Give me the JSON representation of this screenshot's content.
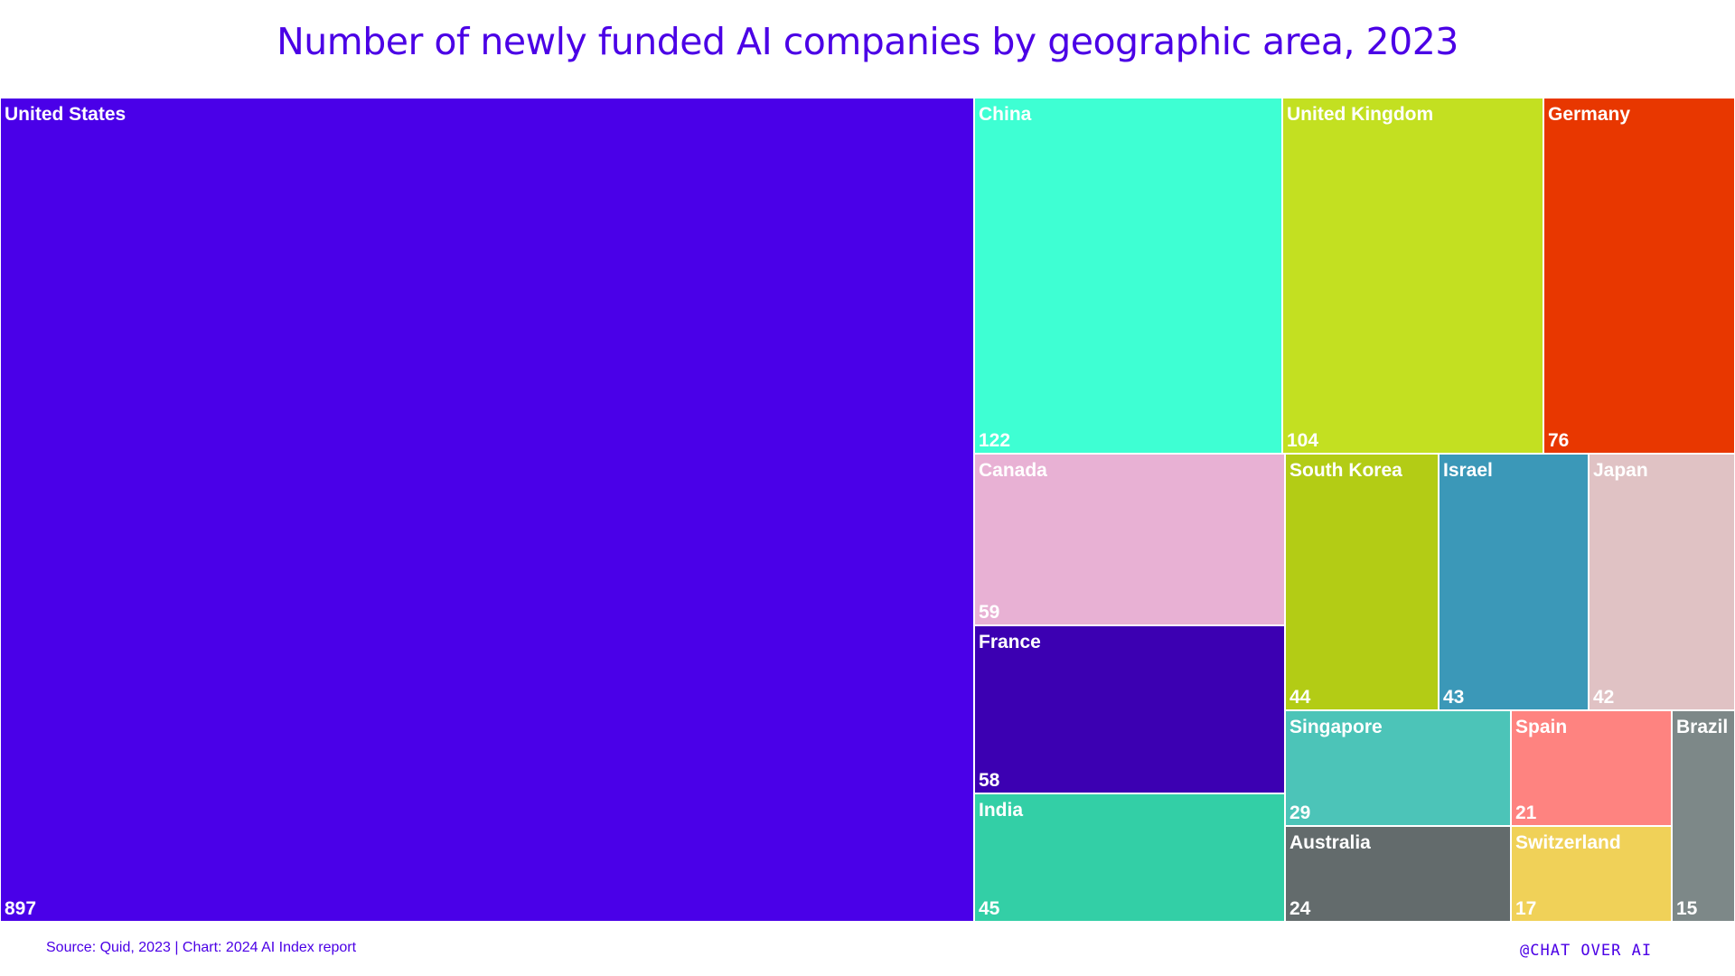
{
  "header": {
    "title": "Number of newly funded AI companies by geographic area, 2023"
  },
  "footer": {
    "source": "Source: Quid, 2023 | Chart: 2024 AI Index report",
    "brand": "@CHAT OVER AI"
  },
  "chart_data": {
    "type": "treemap",
    "title": "Number of newly funded AI companies by geographic area, 2023",
    "items": [
      {
        "name": "United States",
        "value": 897,
        "color": "#4a00e8"
      },
      {
        "name": "China",
        "value": 122,
        "color": "#3effd3"
      },
      {
        "name": "United Kingdom",
        "value": 104,
        "color": "#c3e021"
      },
      {
        "name": "Germany",
        "value": 76,
        "color": "#e83700"
      },
      {
        "name": "Canada",
        "value": 59,
        "color": "#e8b1d4"
      },
      {
        "name": "France",
        "value": 58,
        "color": "#3c00b2"
      },
      {
        "name": "India",
        "value": 45,
        "color": "#33cfa6"
      },
      {
        "name": "South Korea",
        "value": 44,
        "color": "#b3cc15"
      },
      {
        "name": "Israel",
        "value": 43,
        "color": "#3b98b8"
      },
      {
        "name": "Japan",
        "value": 42,
        "color": "#e0c2c4"
      },
      {
        "name": "Singapore",
        "value": 29,
        "color": "#4cc4b8"
      },
      {
        "name": "Australia",
        "value": 24,
        "color": "#636b6c"
      },
      {
        "name": "Spain",
        "value": 21,
        "color": "#fe8380"
      },
      {
        "name": "Switzerland",
        "value": 17,
        "color": "#f0d158"
      },
      {
        "name": "Brazil",
        "value": 15,
        "color": "#7d8888"
      }
    ]
  }
}
